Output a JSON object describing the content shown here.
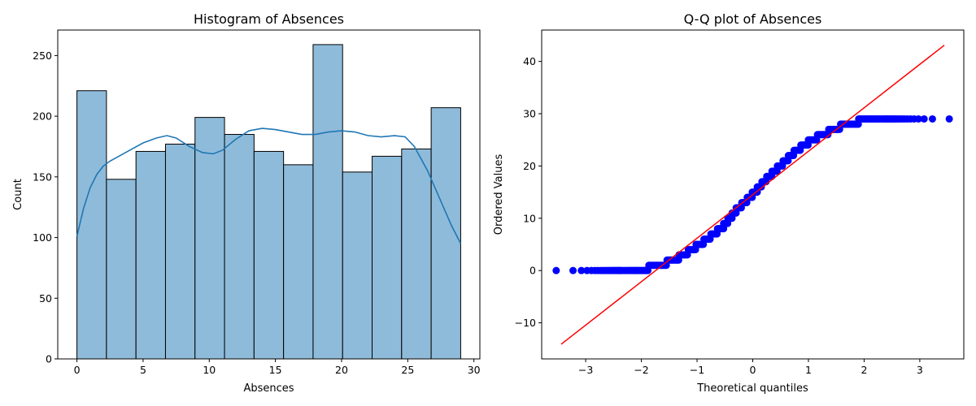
{
  "chart_data": [
    {
      "type": "bar",
      "subtype": "histogram-with-kde",
      "title": "Histogram of Absences",
      "xlabel": "Absences",
      "ylabel": "Count",
      "xlim": [
        -1.45,
        30.45
      ],
      "ylim": [
        0,
        271
      ],
      "xticks": [
        0,
        5,
        10,
        15,
        20,
        25,
        30
      ],
      "yticks": [
        0,
        50,
        100,
        150,
        200,
        250
      ],
      "bin_edges": [
        0,
        2.231,
        4.462,
        6.692,
        8.923,
        11.154,
        13.385,
        15.615,
        17.846,
        20.077,
        22.308,
        24.538,
        26.769,
        29
      ],
      "counts": [
        221,
        148,
        171,
        177,
        199,
        185,
        171,
        160,
        259,
        154,
        167,
        173,
        207
      ],
      "bar_color": "#8fbbda",
      "edge_color": "#000000",
      "kde": {
        "color": "#1f77b4",
        "x": [
          0,
          0.5,
          1,
          1.5,
          2,
          2.5,
          3,
          4,
          5,
          6,
          6.8,
          7.5,
          8.5,
          9.5,
          10.3,
          11,
          12,
          13,
          14,
          15,
          16,
          17,
          18,
          19,
          20,
          21,
          22,
          23,
          24,
          24.8,
          25.5,
          26.5,
          27.5,
          28.3,
          29
        ],
        "y": [
          101,
          124,
          141,
          152,
          159,
          163,
          166,
          172,
          178,
          182,
          184,
          182,
          175,
          170,
          169,
          172,
          181,
          188,
          190,
          189,
          187,
          185,
          185,
          187,
          188,
          187,
          184,
          183,
          184,
          183,
          175,
          155,
          130,
          110,
          95
        ]
      }
    },
    {
      "type": "scatter",
      "subtype": "qq-plot",
      "title": "Q-Q plot of Absences",
      "xlabel": "Theoretical quantiles",
      "ylabel": "Ordered Values",
      "xlim": [
        -3.79,
        3.79
      ],
      "ylim": [
        -16.9,
        46.0
      ],
      "xticks": [
        -3,
        -2,
        -1,
        0,
        1,
        2,
        3
      ],
      "yticks": [
        -10,
        0,
        10,
        20,
        30,
        40
      ],
      "tick_labels_x": [
        "−3",
        "−2",
        "−1",
        "0",
        "1",
        "2",
        "3"
      ],
      "tick_labels_y": [
        "−10",
        "0",
        "10",
        "20",
        "30",
        "40"
      ],
      "marker_color": "#0000ff",
      "line_color": "#ff0000",
      "fit_line": {
        "x": [
          -3.44,
          3.44
        ],
        "y": [
          -14.1,
          43.1
        ]
      },
      "n": 2392,
      "data_min": 0,
      "data_max": 29
    }
  ]
}
